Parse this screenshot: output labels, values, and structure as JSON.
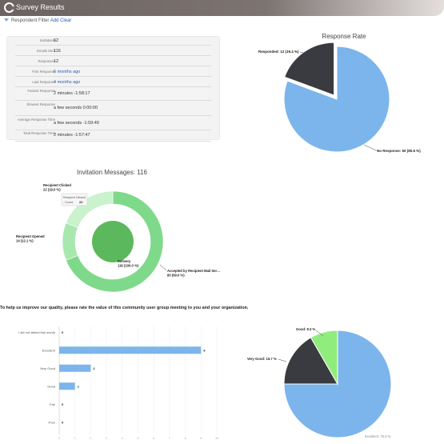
{
  "app": {
    "title": "Survey Results"
  },
  "filter": {
    "label": "Respondent Filter",
    "add": "Add",
    "clear": "Clear"
  },
  "stats": [
    {
      "label": "Invitations",
      "value": "62",
      "link": false
    },
    {
      "label": "Emails Sent",
      "value": "116",
      "link": false
    },
    {
      "label": "Responses",
      "value": "12",
      "link": false
    },
    {
      "label": "First Response",
      "value": "6 months ago",
      "link": true
    },
    {
      "label": "Last Response",
      "value": "4 months ago",
      "link": true
    },
    {
      "label": "Fastest Response",
      "value": "2 minutes -1:58:17",
      "link": false
    },
    {
      "label": "Slowest Response",
      "value": "a few seconds 0:00:00",
      "link": false
    },
    {
      "label": "Average Response Time",
      "value": "a few seconds -1:59:49",
      "link": false
    },
    {
      "label": "Total Response Time",
      "value": "2 minutes -1:57:47",
      "link": false
    }
  ],
  "response_rate": {
    "title": "Response Rate",
    "labels": [
      "Responded: 12 (19.4 %)",
      "No Response: 50 (80.6 %)"
    ]
  },
  "invitations": {
    "title": "Invitation Messages: 116",
    "labels": {
      "clicked": "Recipient Clicked\n22 (19.0 %)",
      "opened": "Recipient Opened\n14 (12.1 %)",
      "delivery": "Delivery\n116 (100.0 %)",
      "accepted": "Accepted by Recipient Mail Ser…\n80 (69.0 %)"
    },
    "tooltip": {
      "line1": "Recipient Clicked",
      "line2": "- Count:",
      "value": "22"
    }
  },
  "question": {
    "text": "To help us improve our quality, please rate the value of this community user group meeting to you and your organization."
  },
  "chart_data": [
    {
      "type": "pie",
      "title": "Response Rate",
      "categories": [
        "Responded",
        "No Response"
      ],
      "values": [
        12,
        50
      ],
      "percents": [
        19.4,
        80.6
      ],
      "colors": [
        "#3a3b40",
        "#7cb5ec"
      ]
    },
    {
      "type": "pie",
      "title": "Invitation Messages: 116",
      "inner": {
        "categories": [
          "Delivery"
        ],
        "values": [
          116
        ],
        "percents": [
          100.0
        ],
        "colors": [
          "#5cb85c"
        ]
      },
      "outer": {
        "categories": [
          "Accepted by Recipient Mail Ser…",
          "Recipient Opened",
          "Recipient Clicked"
        ],
        "values": [
          80,
          14,
          22
        ],
        "percents": [
          69.0,
          12.1,
          19.0
        ],
        "colors": [
          "#7fd98a",
          "#a8e8ae",
          "#c9f2cd"
        ]
      }
    },
    {
      "type": "bar",
      "orientation": "horizontal",
      "categories": [
        "I did not attend this month",
        "Excellent",
        "Very Good",
        "Good",
        "Fair",
        "Poor"
      ],
      "values": [
        0,
        9,
        2,
        1,
        0,
        0
      ],
      "xlim": [
        0,
        10
      ],
      "xticks": [
        "0",
        "1",
        "2",
        "3",
        "4",
        "5",
        "6",
        "7",
        "8",
        "9",
        "10"
      ],
      "color": "#7cb5ec"
    },
    {
      "type": "pie",
      "categories": [
        "Excellent",
        "Very Good",
        "Good"
      ],
      "values": [
        9,
        2,
        1
      ],
      "labels": [
        "Excellent: 75.0 %",
        "Very Good: 16.7 %",
        "Good: 8.3 %"
      ],
      "colors": [
        "#7cb5ec",
        "#3a3b40",
        "#90ed7d"
      ]
    }
  ]
}
